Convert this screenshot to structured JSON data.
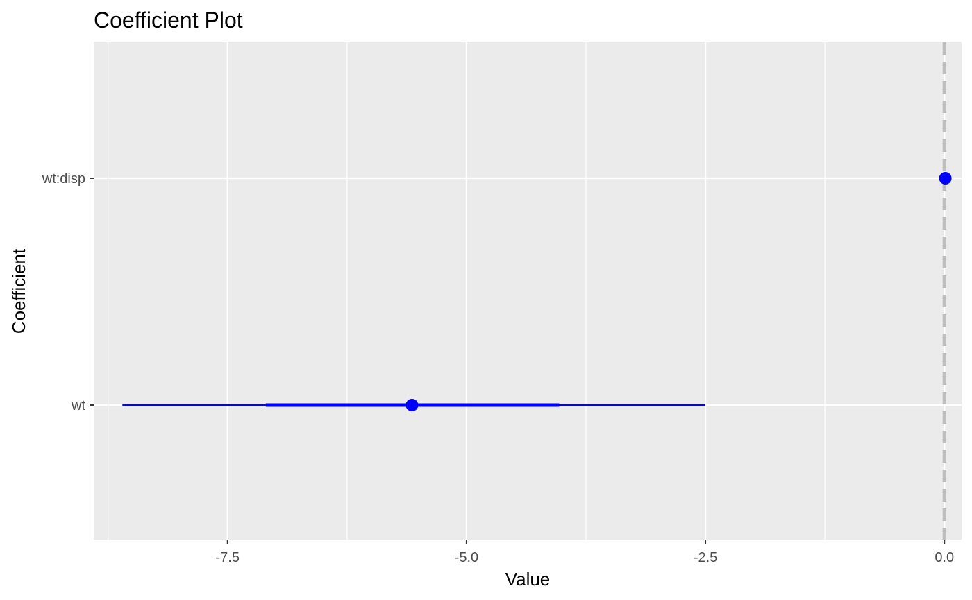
{
  "chart_data": {
    "type": "coefficient",
    "title": "Coefficient Plot",
    "xlabel": "Value",
    "ylabel": "Coefficient",
    "xlim": [
      -8.9,
      0.18
    ],
    "x_ticks": [
      -7.5,
      -5.0,
      -2.5,
      0.0
    ],
    "x_tick_labels": [
      "-7.5",
      "-5.0",
      "-2.5",
      "0.0"
    ],
    "x_minor_ticks": [
      -8.75,
      -6.25,
      -3.75,
      -1.25
    ],
    "categories": [
      "wt",
      "wt:disp"
    ],
    "coefficients": [
      {
        "name": "wt",
        "value": -5.57,
        "inner": [
          -7.1,
          -4.03
        ],
        "outer": [
          -8.6,
          -2.5
        ]
      },
      {
        "name": "wt:disp",
        "value": 0.01,
        "inner": [
          0.0,
          0.02
        ],
        "outer": [
          -0.01,
          0.03
        ]
      }
    ],
    "reference_line": 0,
    "grid": true,
    "colors": {
      "panel": "#ebebeb",
      "grid": "#ffffff",
      "point": "#0000ff",
      "reference": "#bebebe"
    }
  }
}
